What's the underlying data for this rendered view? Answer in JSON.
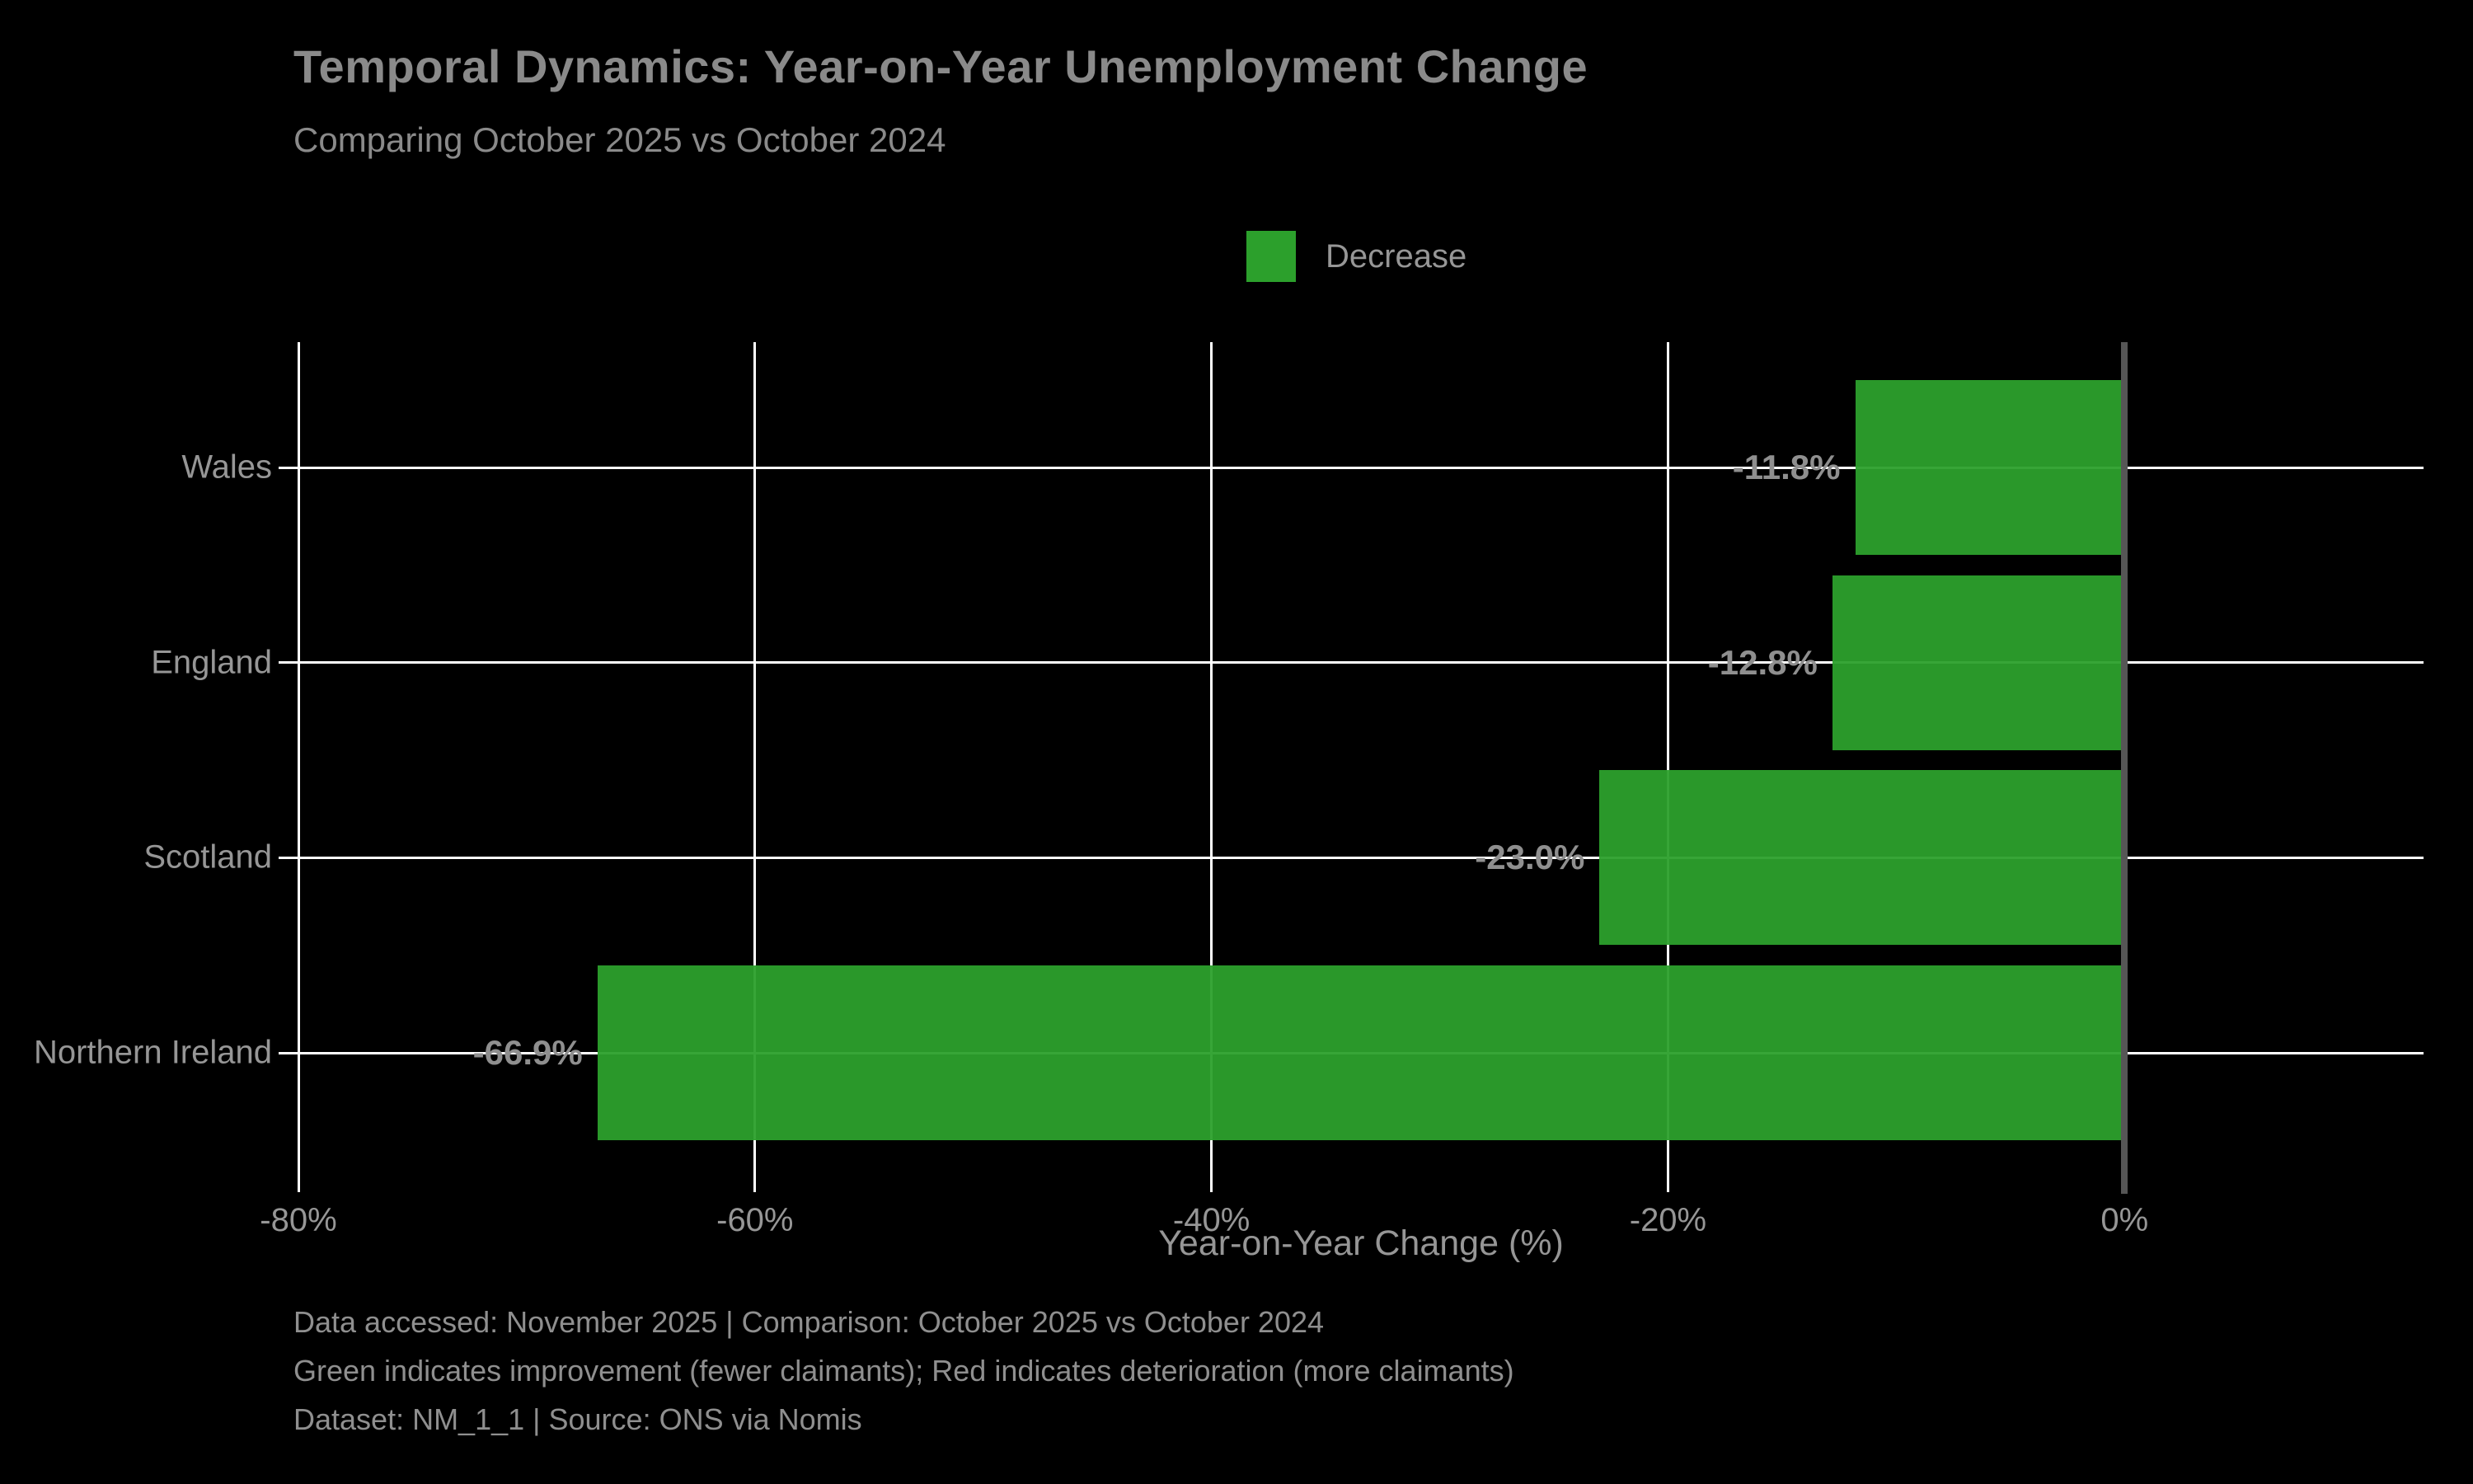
{
  "header": {
    "title": "Temporal Dynamics: Year-on-Year Unemployment Change",
    "subtitle": "Comparing October 2025 vs October 2024"
  },
  "legend": {
    "label": "Decrease",
    "swatch_color": "#2ca02c"
  },
  "chart_data": {
    "type": "bar",
    "orientation": "horizontal",
    "title": "Temporal Dynamics: Year-on-Year Unemployment Change",
    "subtitle": "Comparing October 2025 vs October 2024",
    "categories": [
      "Wales",
      "England",
      "Scotland",
      "Northern Ireland"
    ],
    "values": [
      -11.8,
      -12.8,
      -23.0,
      -66.9
    ],
    "bar_labels": [
      "-11.8%",
      "-12.8%",
      "-23.0%",
      "-66.9%"
    ],
    "series_name": "Decrease",
    "bar_color": "#2ca02c",
    "xlabel": "Year-on-Year Change (%)",
    "ylabel": "",
    "xlim": [
      -80,
      13.1
    ],
    "xticks": [
      {
        "value": -80,
        "label": "-80%"
      },
      {
        "value": -60,
        "label": "-60%"
      },
      {
        "value": -40,
        "label": "-40%"
      },
      {
        "value": -20,
        "label": "-20%"
      },
      {
        "value": 0,
        "label": "0%"
      }
    ],
    "grid": true,
    "legend_position": "upper center",
    "zero_line": true
  },
  "footer": {
    "lines": [
      "Data accessed: November 2025 | Comparison: October 2025 vs October 2024",
      "Green indicates improvement (fewer claimants); Red indicates deterioration (more claimants)",
      "Dataset: NM_1_1 | Source: ONS via Nomis"
    ]
  },
  "colors": {
    "background": "#000000",
    "bar_green": "#2ca02c",
    "grid_white": "#ffffff",
    "zero_line_gray": "#565656",
    "title_text": "#8a8a8a",
    "axis_text": "#969696",
    "value_label_text": "#8f8f8f",
    "footer_text": "#8f8f8f"
  }
}
